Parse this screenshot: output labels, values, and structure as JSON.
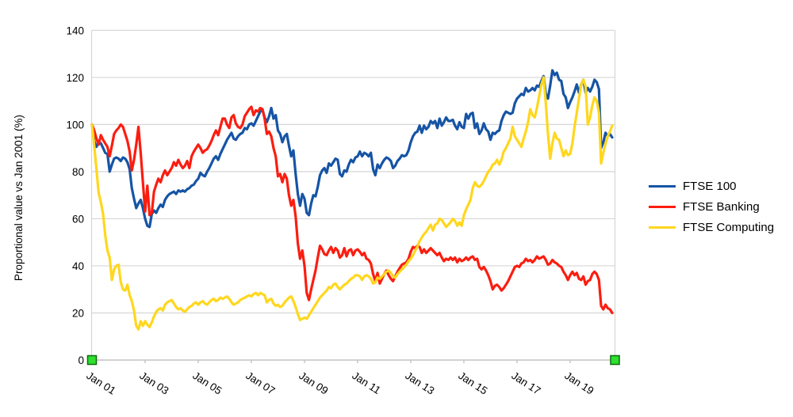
{
  "chart_data": {
    "type": "line",
    "title": "",
    "ylabel": "Proportional value vs Jan 2001 (%)",
    "xlabel": "",
    "ylim": [
      0,
      140
    ],
    "y_ticks": [
      0,
      20,
      40,
      60,
      80,
      100,
      120,
      140
    ],
    "x_tick_labels": [
      "Jan 01",
      "Jan 03",
      "Jan 05",
      "Jan 07",
      "Jan 09",
      "Jan 11",
      "Jan 13",
      "Jan 15",
      "Jan 17",
      "Jan 19"
    ],
    "x_interval": "monthly",
    "x_range": [
      "Jan 2001",
      "Aug 2020"
    ],
    "grid": "horizontal",
    "legend_position": "right",
    "colors": {
      "grid": "#d6d6d6",
      "axis": "#c3c3c3",
      "text": "#000000"
    },
    "series": [
      {
        "name": "FTSE 100",
        "color": "#1654a5",
        "values": [
          100,
          93,
          90.5,
          92.5,
          92,
          90,
          88,
          87.5,
          80,
          83,
          85.5,
          86,
          85.5,
          84.5,
          86,
          85.5,
          84,
          81,
          73,
          68.5,
          64.5,
          66.5,
          68,
          64.5,
          60,
          57,
          56.5,
          62,
          63.5,
          62.5,
          64.5,
          66,
          65,
          68,
          69.5,
          70.5,
          71,
          71.5,
          70.5,
          72,
          71.5,
          72,
          71.5,
          72.5,
          73,
          74,
          74.5,
          76,
          77,
          79.5,
          78.5,
          78,
          80,
          81.5,
          83.5,
          85.5,
          86.5,
          85,
          87.5,
          89.5,
          91.5,
          93.5,
          95,
          96.5,
          94,
          93.5,
          95,
          96,
          96.5,
          98.5,
          98,
          100,
          100.5,
          99.5,
          101.5,
          103.5,
          105.5,
          106.5,
          103,
          101,
          103.5,
          107,
          102.5,
          104,
          97.5,
          96,
          92.5,
          95,
          96,
          91,
          86.5,
          89,
          79,
          70.5,
          65.5,
          70.5,
          68.5,
          62.5,
          61.5,
          66.5,
          70,
          69.5,
          73.5,
          78.5,
          80.5,
          81.5,
          79.5,
          83.5,
          82.5,
          84,
          85.5,
          85,
          79,
          78,
          80.5,
          80,
          83,
          85,
          84,
          86,
          86.5,
          88.5,
          86.5,
          88,
          87.5,
          86.5,
          88,
          81,
          78.5,
          83,
          81.5,
          83.5,
          85,
          86,
          85.5,
          84.5,
          81.5,
          82.5,
          84.5,
          85.5,
          87,
          86.5,
          87,
          89,
          92.5,
          95,
          96.5,
          97,
          99.5,
          96.5,
          99.5,
          98,
          99,
          101.5,
          100.5,
          101.5,
          98.5,
          102.5,
          99.5,
          101,
          103,
          101.5,
          101.5,
          102,
          99.5,
          98,
          101,
          99,
          98.5,
          104.5,
          102.5,
          104.5,
          105,
          98.5,
          100.5,
          96,
          97.5,
          100.5,
          98,
          97,
          93.5,
          96.5,
          96,
          97,
          97.5,
          101.5,
          104,
          105.5,
          105,
          104.5,
          105,
          109,
          111,
          112,
          113,
          112.5,
          115.5,
          114,
          114.5,
          115.5,
          114.5,
          116.5,
          116,
          118.5,
          120.5,
          113,
          111,
          116.5,
          123,
          121,
          122,
          119,
          118.5,
          113,
          111.5,
          107,
          109.5,
          111.5,
          114,
          117,
          113.5,
          117,
          119,
          113.5,
          115.5,
          114,
          116,
          119,
          118,
          115,
          90,
          92.5,
          96.5,
          95,
          96,
          94.5
        ]
      },
      {
        "name": "FTSE Banking",
        "color": "#fb1d10",
        "values": [
          100,
          97.5,
          94,
          91.5,
          95.5,
          93.5,
          92,
          90.5,
          86.5,
          91,
          96,
          97.5,
          98.5,
          100,
          99,
          96,
          93,
          88.5,
          80.5,
          85,
          91.5,
          99,
          88,
          75.5,
          63,
          74,
          61.5,
          62.5,
          71.5,
          74.5,
          77,
          75.5,
          78.5,
          80.5,
          78.5,
          80,
          81.5,
          84,
          82.5,
          85,
          83,
          81.5,
          82.5,
          84.5,
          81.5,
          86.5,
          88.5,
          90,
          91.5,
          90,
          88,
          89,
          89.5,
          91,
          93,
          95.5,
          97.5,
          95.5,
          99,
          102.5,
          102.5,
          100,
          98.5,
          103,
          104,
          100.5,
          99,
          98.5,
          100,
          103.5,
          105,
          106.5,
          107.5,
          104,
          106,
          105.5,
          107,
          106.5,
          102.5,
          96,
          97,
          95,
          90,
          86.5,
          78,
          79,
          75.5,
          79,
          77,
          70,
          65.5,
          68,
          61,
          49.5,
          43,
          46.5,
          40,
          28.5,
          25.5,
          30,
          34,
          38,
          43.5,
          48.5,
          47,
          45,
          44.5,
          46.5,
          48,
          45.5,
          47.5,
          46.5,
          43.5,
          44.5,
          47.5,
          44,
          46.5,
          47,
          44.5,
          46.5,
          47,
          46,
          44.5,
          45.5,
          43,
          42.5,
          41,
          36.5,
          33.5,
          37,
          32.5,
          34.5,
          36.5,
          38,
          36,
          34.5,
          33.5,
          35.5,
          37.5,
          39,
          40.5,
          41,
          41.5,
          43,
          46,
          48,
          47.5,
          48.5,
          48,
          45.5,
          47,
          45.5,
          46.5,
          47.5,
          46.5,
          45.5,
          44.5,
          45.5,
          43.5,
          42,
          43,
          42.5,
          43.5,
          42.5,
          43.5,
          41.5,
          43,
          42,
          42.5,
          43.5,
          42.5,
          43.5,
          44,
          42.5,
          43,
          39.5,
          38.5,
          39.5,
          38,
          36,
          33.5,
          30,
          31.5,
          32,
          31,
          29.5,
          30.5,
          32,
          33.5,
          35.5,
          37.5,
          39.5,
          40,
          39.5,
          41,
          41.5,
          43,
          42,
          42.5,
          41.5,
          42.5,
          44,
          43,
          43.5,
          44,
          42.5,
          40.5,
          41,
          42.5,
          41.5,
          41,
          40,
          39.5,
          37.5,
          36,
          34,
          36,
          37.5,
          36,
          37,
          34.5,
          34,
          35.5,
          32,
          33.5,
          34,
          36.5,
          37.5,
          36.5,
          34,
          23,
          21.5,
          23.5,
          22,
          21.5,
          20
        ]
      },
      {
        "name": "FTSE Computing",
        "color": "#ffd71e",
        "values": [
          100,
          91,
          81,
          71,
          67,
          62,
          53,
          46.5,
          43.5,
          34,
          38.5,
          40,
          40.5,
          33,
          30,
          29.5,
          32,
          27.5,
          25,
          21,
          14.5,
          13,
          16.5,
          14.5,
          16.5,
          15,
          14,
          16,
          18.5,
          20.5,
          21.5,
          22,
          21,
          23.5,
          24.5,
          25,
          25.5,
          24,
          22.5,
          21.5,
          22,
          21,
          20.5,
          21.5,
          22.5,
          23,
          24,
          24.5,
          23.5,
          24.5,
          25,
          24,
          23.5,
          24.5,
          25.5,
          26,
          25,
          25.5,
          26.5,
          26,
          26.5,
          27,
          26,
          24.5,
          23.5,
          24,
          24.5,
          25.5,
          26,
          26.5,
          27,
          27.5,
          27,
          28,
          28.5,
          27.5,
          28.5,
          28,
          27.5,
          24.5,
          25.5,
          26,
          24,
          23,
          23.5,
          22.5,
          23,
          24.5,
          25.5,
          26.5,
          27,
          25,
          22.5,
          19.5,
          17,
          17.5,
          18,
          17.5,
          19,
          20.5,
          22,
          23.5,
          25,
          26.5,
          27.5,
          28.5,
          29.5,
          31,
          30.5,
          32,
          32.5,
          31,
          30,
          31,
          32,
          32.5,
          33.5,
          34.5,
          35,
          36,
          36,
          35.5,
          34,
          35.5,
          36,
          35.5,
          34.5,
          32.5,
          33,
          35,
          34.5,
          35.5,
          36.5,
          37.5,
          38,
          37,
          35.5,
          35,
          36.5,
          37.5,
          38.5,
          39.5,
          40.5,
          42,
          43,
          44.5,
          46.5,
          48,
          50.5,
          52,
          53.5,
          54.5,
          56,
          57.5,
          55,
          57.5,
          58,
          60,
          59.5,
          58,
          56.5,
          57.5,
          58.5,
          60,
          59,
          57,
          58.5,
          57,
          61.5,
          64,
          66,
          68,
          73,
          75.5,
          74,
          73.5,
          74.5,
          76,
          78,
          80,
          81,
          83,
          83.5,
          85,
          83,
          85,
          88.5,
          90,
          92,
          94,
          99,
          95,
          93.5,
          92,
          90.5,
          94,
          97,
          101,
          106.5,
          104,
          103,
          107,
          112,
          117,
          120,
          109,
          96,
          85.5,
          92,
          96.5,
          94,
          93.5,
          90,
          86.5,
          89,
          87,
          87.5,
          92,
          99,
          105,
          111,
          117,
          119,
          116,
          100,
          103,
          108,
          111.5,
          110,
          105,
          83.5,
          88,
          92,
          95,
          97,
          99.5
        ]
      }
    ]
  },
  "axis_handles": {
    "fill": "#2fe02f",
    "border": "#0a6b0a",
    "positions": [
      "x-axis-start",
      "x-axis-end"
    ]
  }
}
